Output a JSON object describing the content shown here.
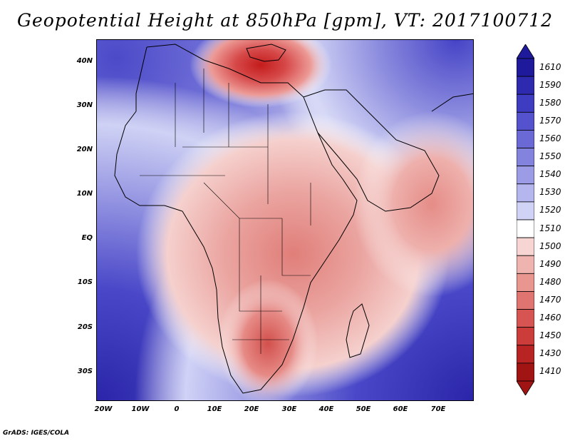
{
  "title": "Geopotential Height at 850hPa [gpm], VT: 2017100712",
  "credit": "GrADS: IGES/COLA",
  "axes": {
    "y_labels": [
      "40N",
      "30N",
      "20N",
      "10N",
      "EQ",
      "10S",
      "20S",
      "30S"
    ],
    "x_labels": [
      "20W",
      "10W",
      "0",
      "10E",
      "20E",
      "30E",
      "40E",
      "50E",
      "60E",
      "70E"
    ]
  },
  "colorbar": {
    "labels": [
      "1610",
      "1590",
      "1580",
      "1570",
      "1560",
      "1550",
      "1540",
      "1530",
      "1520",
      "1510",
      "1500",
      "1490",
      "1480",
      "1470",
      "1460",
      "1450",
      "1430",
      "1410"
    ],
    "colors": [
      "#1f1a9c",
      "#2e2ab0",
      "#3e3cc0",
      "#5452cc",
      "#6a69d6",
      "#8383de",
      "#9c9ce6",
      "#b5b6ee",
      "#d0d2f6",
      "#ffffff",
      "#f7d5d3",
      "#f0b4b0",
      "#e99590",
      "#e07470",
      "#d65552",
      "#cc3c3a",
      "#b82424",
      "#a01414"
    ]
  }
}
